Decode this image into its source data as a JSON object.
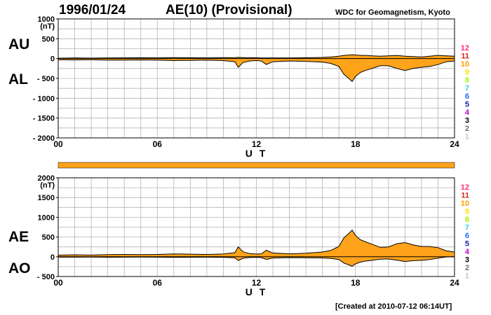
{
  "header": {
    "date": "1996/01/24",
    "title": "AE(10) (Provisional)",
    "source": "WDC for Geomagnetism, Kyoto"
  },
  "footer": {
    "created": "[Created at 2010-07-12 06:14UT]"
  },
  "colors": {
    "fill": "#ffa31a",
    "line": "#000000",
    "grid": "#b4b4b4"
  },
  "station_legend": [
    {
      "label": "12",
      "color": "#ff2a80"
    },
    {
      "label": "11",
      "color": "#e0201a"
    },
    {
      "label": "10",
      "color": "#ff9a00"
    },
    {
      "label": "9",
      "color": "#ffe000"
    },
    {
      "label": "8",
      "color": "#a8f000"
    },
    {
      "label": "7",
      "color": "#30d0e8"
    },
    {
      "label": "6",
      "color": "#1e6cff"
    },
    {
      "label": "5",
      "color": "#1a1ab0"
    },
    {
      "label": "4",
      "color": "#c000d0"
    },
    {
      "label": "3",
      "color": "#000000"
    },
    {
      "label": "2",
      "color": "#707070"
    },
    {
      "label": "1",
      "color": "#c8c8c8"
    }
  ],
  "chart_data": [
    {
      "type": "area",
      "panel": "AU/AL",
      "series_labels": [
        "AU",
        "AL"
      ],
      "xlabel": "U T",
      "ylabel": "(nT)",
      "xlim": [
        0,
        24
      ],
      "ylim": [
        -2000,
        1000
      ],
      "xticks": [
        "00",
        "06",
        "12",
        "18",
        "24"
      ],
      "yticks": [
        "1000",
        "500",
        "0",
        "- 500",
        "- 1000",
        "- 1500",
        "- 2000"
      ],
      "ytick_values": [
        1000,
        500,
        0,
        -500,
        -1000,
        -1500,
        -2000
      ],
      "x": [
        0,
        1,
        2,
        3,
        4,
        5,
        6,
        7,
        8,
        9,
        10,
        10.7,
        10.9,
        11.2,
        11.6,
        12,
        12.3,
        12.6,
        13,
        14,
        15,
        16,
        16.5,
        17,
        17.3,
        17.6,
        17.8,
        18,
        18.3,
        18.6,
        19,
        19.5,
        20,
        20.5,
        21,
        21.5,
        22,
        22.5,
        23,
        23.5,
        24
      ],
      "au": [
        10,
        15,
        12,
        15,
        18,
        20,
        18,
        22,
        20,
        18,
        20,
        25,
        30,
        25,
        20,
        20,
        15,
        15,
        15,
        15,
        20,
        30,
        40,
        60,
        80,
        90,
        95,
        90,
        80,
        80,
        70,
        60,
        70,
        80,
        60,
        50,
        40,
        60,
        80,
        70,
        60
      ],
      "al": [
        -30,
        -35,
        -30,
        -40,
        -40,
        -35,
        -40,
        -50,
        -45,
        -40,
        -50,
        -80,
        -220,
        -100,
        -60,
        -50,
        -60,
        -150,
        -80,
        -60,
        -70,
        -90,
        -120,
        -200,
        -400,
        -500,
        -580,
        -450,
        -350,
        -300,
        -250,
        -180,
        -180,
        -250,
        -300,
        -250,
        -220,
        -200,
        -150,
        -80,
        -60
      ]
    },
    {
      "type": "area",
      "panel": "AE/AO",
      "series_labels": [
        "AE",
        "AO"
      ],
      "xlabel": "U T",
      "ylabel": "(nT)",
      "xlim": [
        0,
        24
      ],
      "ylim": [
        -500,
        2000
      ],
      "xticks": [
        "00",
        "06",
        "12",
        "18",
        "24"
      ],
      "yticks": [
        "2000",
        "1500",
        "1000",
        "500",
        "0",
        "- 500"
      ],
      "ytick_values": [
        2000,
        1500,
        1000,
        500,
        0,
        -500
      ],
      "x": [
        0,
        1,
        2,
        3,
        4,
        5,
        6,
        7,
        8,
        9,
        10,
        10.7,
        10.9,
        11.2,
        11.6,
        12,
        12.3,
        12.6,
        13,
        14,
        15,
        16,
        16.5,
        17,
        17.3,
        17.6,
        17.8,
        18,
        18.3,
        18.6,
        19,
        19.5,
        20,
        20.5,
        21,
        21.5,
        22,
        22.5,
        23,
        23.5,
        24
      ],
      "ae": [
        40,
        50,
        42,
        55,
        58,
        55,
        58,
        72,
        65,
        58,
        70,
        105,
        250,
        125,
        80,
        70,
        75,
        165,
        95,
        75,
        90,
        120,
        160,
        260,
        480,
        590,
        675,
        540,
        430,
        380,
        320,
        240,
        250,
        330,
        360,
        300,
        260,
        260,
        230,
        150,
        120
      ],
      "ao": [
        -10,
        -10,
        -9,
        -12,
        -11,
        -8,
        -11,
        -14,
        -12,
        -11,
        -15,
        -27,
        -95,
        -37,
        -20,
        -15,
        -22,
        -67,
        -32,
        -22,
        -25,
        -30,
        -40,
        -70,
        -160,
        -205,
        -242,
        -180,
        -135,
        -110,
        -90,
        -60,
        -55,
        -85,
        -120,
        -100,
        -90,
        -70,
        -35,
        -5,
        0
      ]
    }
  ]
}
